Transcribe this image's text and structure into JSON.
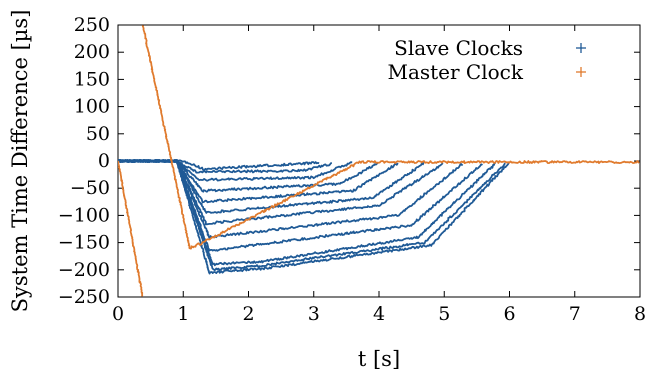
{
  "chart_data": {
    "type": "scatter",
    "title": "",
    "xlabel": "t [s]",
    "ylabel": "System Time Difference [µs]",
    "xlim": [
      0,
      8
    ],
    "ylim": [
      -250,
      250
    ],
    "x_ticks": [
      "0",
      "1",
      "2",
      "3",
      "4",
      "5",
      "6",
      "7",
      "8"
    ],
    "y_ticks": [
      "250",
      "200",
      "150",
      "100",
      "50",
      "0",
      "−50",
      "−100",
      "−150",
      "−200",
      "−250"
    ],
    "grid": false,
    "legend_position": "top-right",
    "series": [
      {
        "name": "Slave Clocks",
        "color": "#1f5a96",
        "marker": "+",
        "note_shape": "multiple traces: near 0 until t≈1, drop between t≈0.8–1.5, then ramp back to 0",
        "traces": [
          {
            "points": [
              [
                0,
                0
              ],
              [
                0.9,
                0
              ],
              [
                1.1,
                -3
              ],
              [
                1.3,
                -15
              ],
              [
                3.1,
                -3
              ]
            ]
          },
          {
            "points": [
              [
                0,
                0
              ],
              [
                0.9,
                0
              ],
              [
                1.2,
                -20
              ],
              [
                2.8,
                -18
              ],
              [
                3.3,
                -5
              ]
            ]
          },
          {
            "points": [
              [
                0,
                0
              ],
              [
                0.9,
                0
              ],
              [
                1.25,
                -35
              ],
              [
                3.0,
                -30
              ],
              [
                3.6,
                -2
              ]
            ]
          },
          {
            "points": [
              [
                0,
                0
              ],
              [
                0.9,
                0
              ],
              [
                1.3,
                -55
              ],
              [
                3.4,
                -42
              ],
              [
                4.0,
                -3
              ]
            ]
          },
          {
            "points": [
              [
                0,
                0
              ],
              [
                0.9,
                0
              ],
              [
                1.3,
                -75
              ],
              [
                3.6,
                -55
              ],
              [
                4.3,
                -3
              ]
            ]
          },
          {
            "points": [
              [
                0,
                0
              ],
              [
                0.9,
                0
              ],
              [
                1.35,
                -95
              ],
              [
                3.9,
                -68
              ],
              [
                4.7,
                -3
              ]
            ]
          },
          {
            "points": [
              [
                0,
                0
              ],
              [
                0.9,
                0
              ],
              [
                1.35,
                -115
              ],
              [
                4.0,
                -82
              ],
              [
                5.0,
                -3
              ]
            ]
          },
          {
            "points": [
              [
                0,
                0
              ],
              [
                0.9,
                0
              ],
              [
                1.4,
                -140
              ],
              [
                4.3,
                -100
              ],
              [
                5.3,
                -3
              ]
            ]
          },
          {
            "points": [
              [
                0,
                0
              ],
              [
                0.9,
                0
              ],
              [
                1.4,
                -165
              ],
              [
                4.5,
                -118
              ],
              [
                5.6,
                -3
              ]
            ]
          },
          {
            "points": [
              [
                0,
                0
              ],
              [
                0.9,
                0
              ],
              [
                1.45,
                -190
              ],
              [
                2.2,
                -185
              ],
              [
                4.6,
                -140
              ],
              [
                5.8,
                -3
              ]
            ]
          },
          {
            "points": [
              [
                0,
                0
              ],
              [
                0.9,
                0
              ],
              [
                1.45,
                -200
              ],
              [
                2.2,
                -192
              ],
              [
                4.7,
                -150
              ],
              [
                5.95,
                -3
              ]
            ]
          },
          {
            "points": [
              [
                0,
                0
              ],
              [
                0.9,
                0
              ],
              [
                1.4,
                -205
              ],
              [
                2.2,
                -198
              ],
              [
                4.8,
                -155
              ],
              [
                6.0,
                -2
              ]
            ]
          }
        ]
      },
      {
        "name": "Master Clock",
        "color": "#e07b2e",
        "marker": "+",
        "traces": [
          {
            "points": [
              [
                0.38,
                250
              ],
              [
                1.1,
                -160
              ],
              [
                1.3,
                -150
              ],
              [
                3.7,
                -2
              ],
              [
                8,
                -2
              ]
            ]
          },
          {
            "points": [
              [
                0,
                0
              ],
              [
                0.38,
                -250
              ]
            ]
          }
        ]
      }
    ]
  }
}
